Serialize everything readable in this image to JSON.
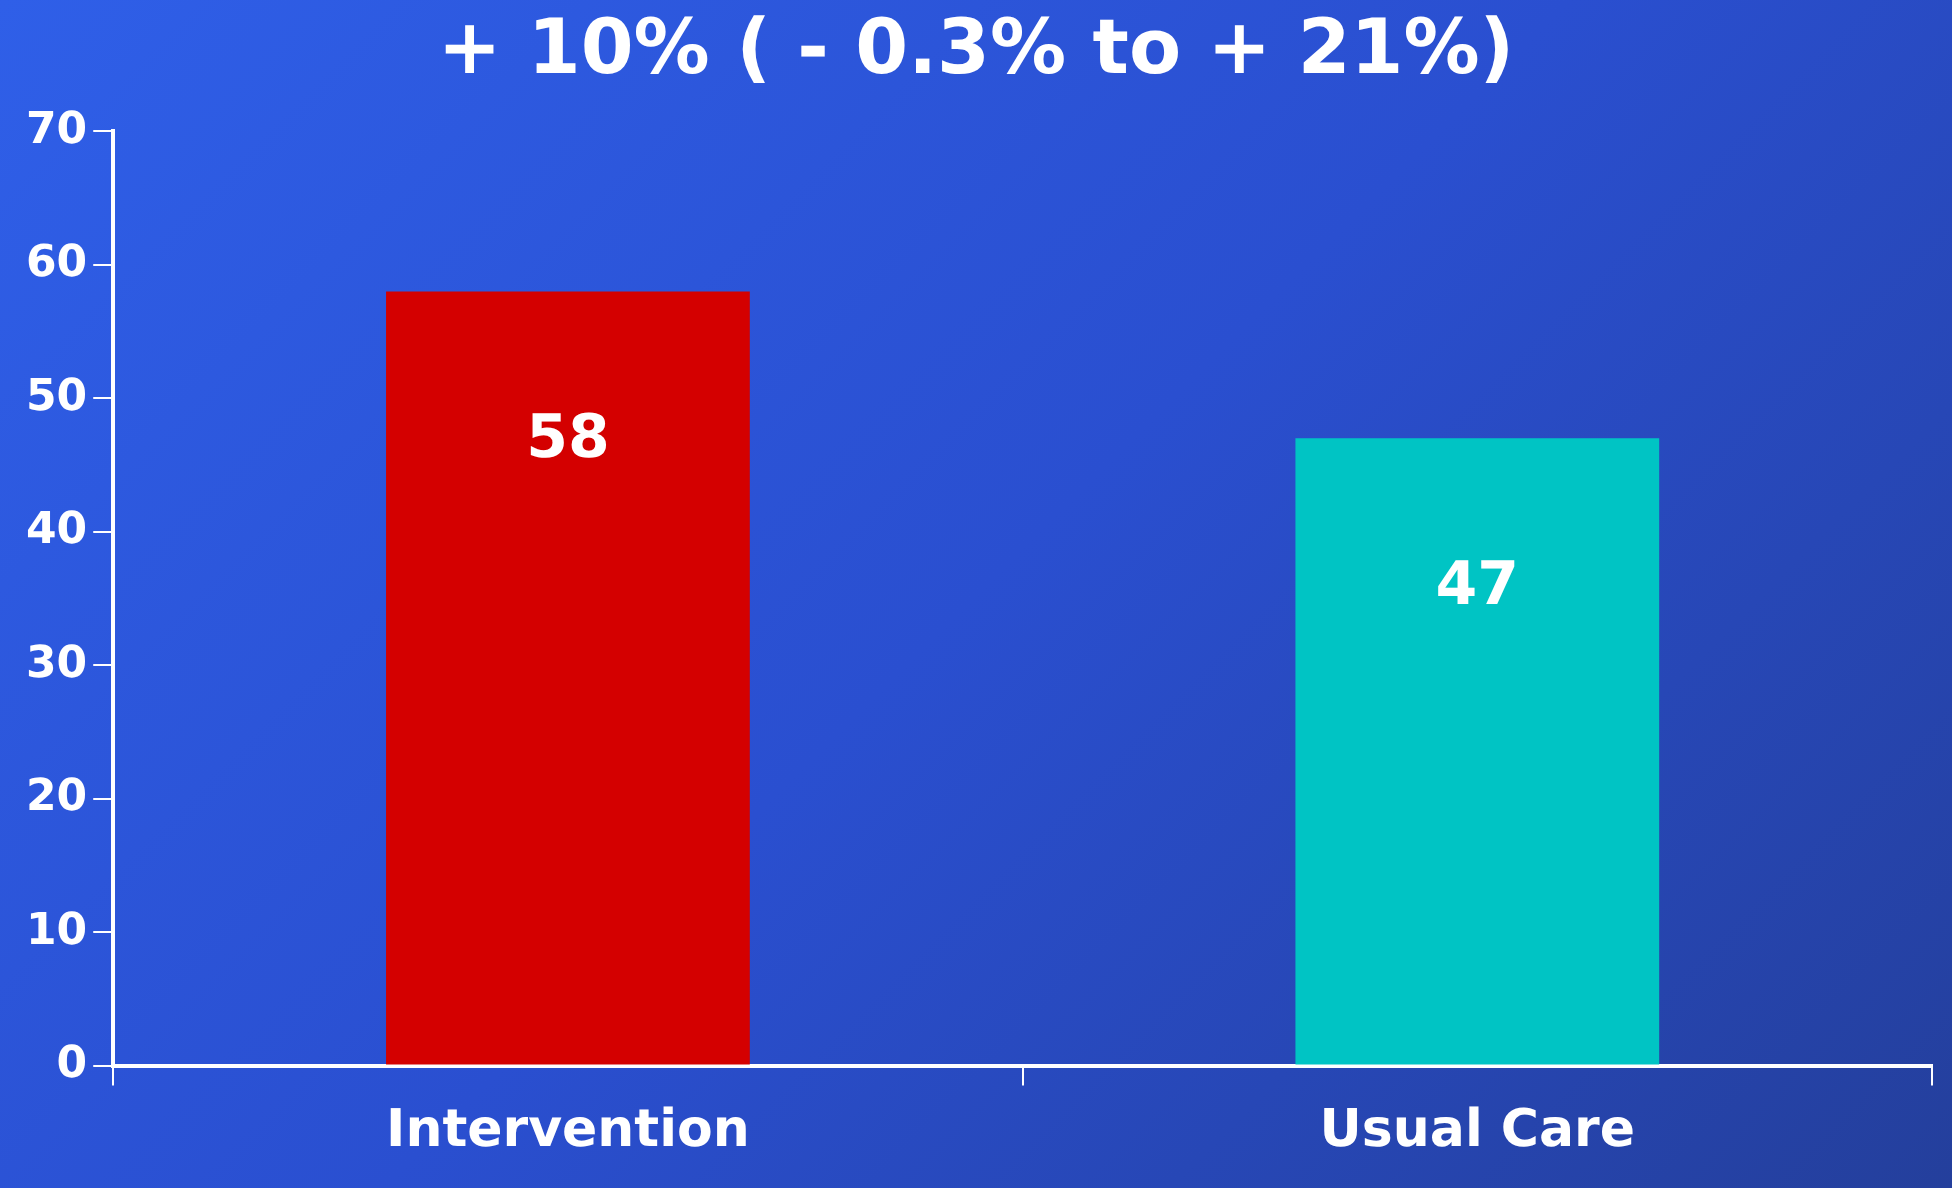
{
  "chart_data": {
    "type": "bar",
    "title": "+ 10% ( - 0.3% to + 21%)",
    "categories": [
      "Intervention",
      "Usual Care"
    ],
    "values": [
      58,
      47
    ],
    "colors": [
      "#d40000",
      "#00c4c4"
    ],
    "ylim": [
      0,
      70
    ],
    "yticks": [
      0,
      10,
      20,
      30,
      40,
      50,
      60,
      70
    ],
    "grid": false,
    "legend": false,
    "data_labels": true
  }
}
